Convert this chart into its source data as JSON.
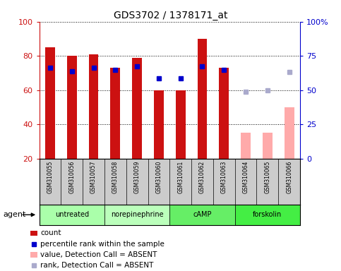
{
  "title": "GDS3702 / 1378171_at",
  "samples": [
    "GSM310055",
    "GSM310056",
    "GSM310057",
    "GSM310058",
    "GSM310059",
    "GSM310060",
    "GSM310061",
    "GSM310062",
    "GSM310063",
    "GSM310064",
    "GSM310065",
    "GSM310066"
  ],
  "bar_values": [
    85,
    80,
    81,
    73,
    79,
    60,
    60,
    90,
    73,
    null,
    null,
    null
  ],
  "bar_absent_values": [
    null,
    null,
    null,
    null,
    null,
    null,
    null,
    null,
    null,
    35,
    35,
    50
  ],
  "rank_values": [
    73,
    71,
    73,
    72,
    74,
    67,
    67,
    74,
    72,
    null,
    null,
    null
  ],
  "rank_absent_values": [
    null,
    null,
    null,
    null,
    null,
    null,
    null,
    null,
    null,
    49,
    50,
    63
  ],
  "bar_color": "#cc1111",
  "bar_absent_color": "#ffaaaa",
  "rank_color": "#0000cc",
  "rank_absent_color": "#aaaacc",
  "ylim_left": [
    20,
    100
  ],
  "ylim_right": [
    0,
    100
  ],
  "yticks_left": [
    20,
    40,
    60,
    80,
    100
  ],
  "yticks_right": [
    0,
    25,
    50,
    75,
    100
  ],
  "ytick_labels_right": [
    "0",
    "25",
    "50",
    "75",
    "100%"
  ],
  "groups": [
    {
      "label": "untreated",
      "indices": [
        0,
        1,
        2
      ],
      "color": "#aaffaa"
    },
    {
      "label": "norepinephrine",
      "indices": [
        3,
        4,
        5
      ],
      "color": "#bbffbb"
    },
    {
      "label": "cAMP",
      "indices": [
        6,
        7,
        8
      ],
      "color": "#66ee66"
    },
    {
      "label": "forskolin",
      "indices": [
        9,
        10,
        11
      ],
      "color": "#44ee44"
    }
  ],
  "agent_label": "agent",
  "legend_items": [
    {
      "label": "count",
      "color": "#cc1111",
      "type": "rect"
    },
    {
      "label": "percentile rank within the sample",
      "color": "#0000cc",
      "type": "square"
    },
    {
      "label": "value, Detection Call = ABSENT",
      "color": "#ffaaaa",
      "type": "rect"
    },
    {
      "label": "rank, Detection Call = ABSENT",
      "color": "#aaaacc",
      "type": "square"
    }
  ],
  "bar_width": 0.45,
  "rank_marker_size": 5,
  "label_fontsize": 6,
  "group_fontsize": 7,
  "title_fontsize": 10
}
